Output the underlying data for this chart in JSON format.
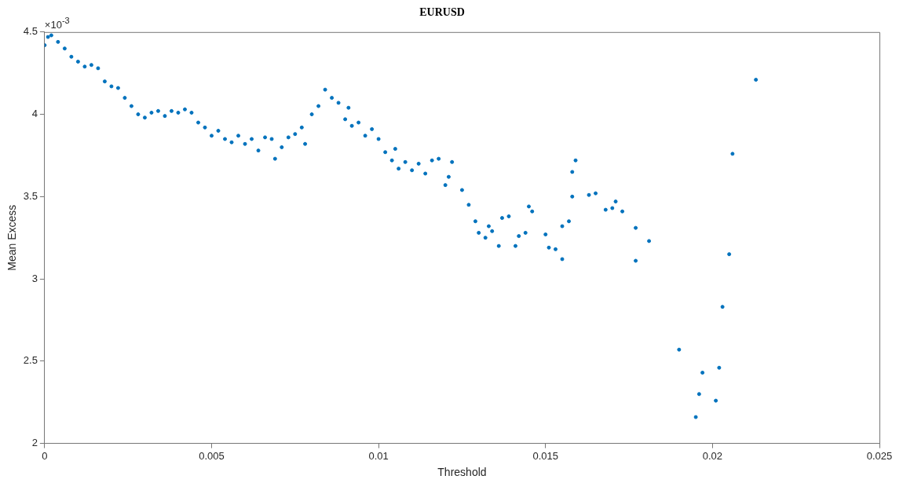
{
  "chart_data": {
    "type": "scatter",
    "title": "EURUSD",
    "xlabel": "Threshold",
    "ylabel": "Mean Excess",
    "annotations": [
      "×10$^{-3}$"
    ],
    "x": [
      0,
      0.0001,
      0.0002,
      0.0004,
      0.0006,
      0.0008,
      0.001,
      0.0012,
      0.0014,
      0.0016,
      0.0018,
      0.002,
      0.0022,
      0.0024,
      0.0026,
      0.0028,
      0.003,
      0.0032,
      0.0034,
      0.0036,
      0.0038,
      0.004,
      0.0042,
      0.0044,
      0.0046,
      0.0048,
      0.005,
      0.0052,
      0.0054,
      0.0056,
      0.0058,
      0.006,
      0.0062,
      0.0064,
      0.0066,
      0.0068,
      0.0069,
      0.0071,
      0.0073,
      0.0075,
      0.0077,
      0.0078,
      0.008,
      0.0082,
      0.0084,
      0.0086,
      0.0088,
      0.009,
      0.0091,
      0.0092,
      0.0094,
      0.0096,
      0.0098,
      0.01,
      0.0102,
      0.0104,
      0.0105,
      0.0106,
      0.0108,
      0.011,
      0.0112,
      0.0114,
      0.0116,
      0.0118,
      0.012,
      0.0121,
      0.0122,
      0.0125,
      0.0127,
      0.0129,
      0.013,
      0.0132,
      0.0133,
      0.0134,
      0.0136,
      0.0137,
      0.0139,
      0.0141,
      0.0142,
      0.0144,
      0.0145,
      0.0146,
      0.015,
      0.0151,
      0.0153,
      0.0155,
      0.0155,
      0.0157,
      0.0158,
      0.0158,
      0.0159,
      0.0163,
      0.0165,
      0.0168,
      0.017,
      0.0171,
      0.0173,
      0.0177,
      0.0177,
      0.0181,
      0.019,
      0.0195,
      0.0196,
      0.0197,
      0.0201,
      0.0202,
      0.0203,
      0.0205,
      0.0206,
      0.0213
    ],
    "series": [
      {
        "color": "#0072bd",
        "values": [
          4.42,
          4.47,
          4.48,
          4.44,
          4.4,
          4.35,
          4.32,
          4.29,
          4.3,
          4.28,
          4.2,
          4.17,
          4.16,
          4.1,
          4.05,
          4.0,
          3.98,
          4.01,
          4.02,
          3.99,
          4.02,
          4.01,
          4.03,
          4.01,
          3.95,
          3.92,
          3.87,
          3.9,
          3.85,
          3.83,
          3.87,
          3.82,
          3.85,
          3.78,
          3.86,
          3.85,
          3.73,
          3.8,
          3.86,
          3.88,
          3.92,
          3.82,
          4.0,
          4.05,
          4.15,
          4.1,
          4.07,
          3.97,
          4.04,
          3.93,
          3.95,
          3.87,
          3.91,
          3.85,
          3.77,
          3.72,
          3.79,
          3.67,
          3.71,
          3.66,
          3.7,
          3.64,
          3.72,
          3.73,
          3.57,
          3.62,
          3.71,
          3.54,
          3.45,
          3.35,
          3.28,
          3.25,
          3.32,
          3.29,
          3.2,
          3.37,
          3.38,
          3.2,
          3.26,
          3.28,
          3.44,
          3.41,
          3.27,
          3.19,
          3.18,
          3.12,
          3.32,
          3.35,
          3.5,
          3.65,
          3.72,
          3.51,
          3.52,
          3.42,
          3.43,
          3.47,
          3.41,
          3.31,
          3.11,
          3.23,
          2.57,
          2.16,
          2.3,
          2.43,
          2.26,
          2.46,
          2.83,
          3.15,
          3.76,
          4.21
        ]
      }
    ],
    "xlim": [
      0,
      0.025
    ],
    "xticks": [
      0,
      0.005,
      0.01,
      0.015,
      0.02,
      0.025
    ],
    "ylim": [
      2,
      4.5
    ],
    "yticks": [
      2,
      2.5,
      3,
      3.5,
      4,
      4.5
    ],
    "grid": false,
    "legend": false,
    "marker": "circle"
  }
}
